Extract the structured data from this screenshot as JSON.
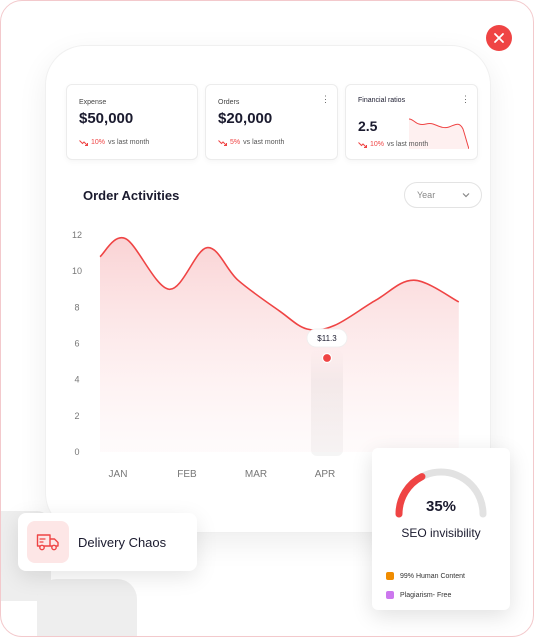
{
  "stats": [
    {
      "label": "Expense",
      "value": "$50,000",
      "pct": "10%",
      "suffix": "vs last month"
    },
    {
      "label": "Orders",
      "value": "$20,000",
      "pct": "5%",
      "suffix": "vs last month"
    },
    {
      "label": "Financial ratios",
      "value": "2.5",
      "pct": "10%",
      "suffix": "vs last month"
    }
  ],
  "chart": {
    "title": "Order Activities",
    "year_select": "Year",
    "tooltip": "$11.3"
  },
  "chart_data": {
    "type": "area",
    "title": "Order Activities",
    "categories": [
      "JAN",
      "FEB",
      "MAR",
      "APR"
    ],
    "y_ticks": [
      "12",
      "10",
      "8",
      "6",
      "4",
      "2",
      "0"
    ],
    "ylim": [
      0,
      12
    ],
    "x": [
      0,
      0.37,
      1.0,
      1.55,
      2.0,
      2.6,
      3.0,
      3.4,
      4.0,
      4.55,
      5.2
    ],
    "y": [
      10.8,
      11.8,
      9.0,
      11.3,
      9.5,
      7.8,
      6.8,
      7.0,
      8.4,
      9.5,
      8.3
    ],
    "highlight_point": {
      "category": "APR",
      "y": 5.2
    },
    "color": "#ef4444",
    "grid": false
  },
  "seo": {
    "percent": 35,
    "percent_label": "35%",
    "label": "SEO invisibility",
    "legend": [
      {
        "label": "99% Human Content",
        "color": "#f08c00"
      },
      {
        "label": "Plagiarism- Free",
        "color": "#cc77ee"
      }
    ]
  },
  "delivery": {
    "label": "Delivery Chaos"
  },
  "colors": {
    "accent": "#ef4444",
    "accent_light": "#fde6e6"
  },
  "icons": {
    "close": "close-icon",
    "truck": "truck-icon",
    "trend_down": "trend-down-icon",
    "kebab": "kebab-icon",
    "chevron": "chevron-down-icon"
  }
}
